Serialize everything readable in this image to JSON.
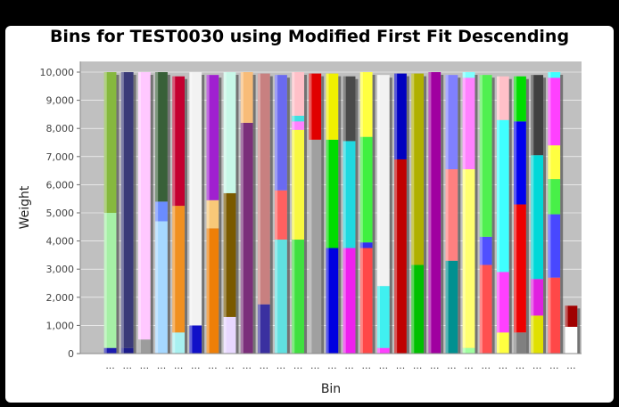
{
  "chart_data": {
    "type": "bar",
    "stacked": true,
    "title": "Bins for TEST0030 using Modified First Fit Descending",
    "xlabel": "Bin",
    "ylabel": "Weight",
    "ylim": [
      0,
      10000
    ],
    "yticks": [
      0,
      1000,
      2000,
      3000,
      4000,
      5000,
      6000,
      7000,
      8000,
      9000,
      10000
    ],
    "ytick_labels": [
      "0",
      "1,000",
      "2,000",
      "3,000",
      "4,000",
      "5,000",
      "6,000",
      "7,000",
      "8,000",
      "9,000",
      "10,000"
    ],
    "xtick_label": "...",
    "grid": true,
    "plot_background": "#c0c0c0",
    "bins": [
      [
        {
          "v": 200,
          "c": "#1c1cb0"
        },
        {
          "v": 4800,
          "c": "#a6f0a6"
        },
        {
          "v": 5000,
          "c": "#86b83e"
        }
      ],
      [
        {
          "v": 200,
          "c": "#1c1c8c"
        },
        {
          "v": 9800,
          "c": "#3a3a78"
        }
      ],
      [
        {
          "v": 500,
          "c": "#9c9c9c"
        },
        {
          "v": 9500,
          "c": "#ffc8ff"
        }
      ],
      [
        {
          "v": 4700,
          "c": "#a6d8ff"
        },
        {
          "v": 700,
          "c": "#6a8cff"
        },
        {
          "v": 4600,
          "c": "#386038"
        }
      ],
      [
        {
          "v": 750,
          "c": "#a8f0f0"
        },
        {
          "v": 4500,
          "c": "#f09020"
        },
        {
          "v": 4600,
          "c": "#c40030"
        }
      ],
      [
        {
          "v": 1000,
          "c": "#1010c8"
        },
        {
          "v": 9000,
          "c": "#f2f2f2"
        }
      ],
      [
        {
          "v": 4450,
          "c": "#ee7f08"
        },
        {
          "v": 1000,
          "c": "#f8c878"
        },
        {
          "v": 4450,
          "c": "#a020d0"
        }
      ],
      [
        {
          "v": 1300,
          "c": "#e8d8ff"
        },
        {
          "v": 4400,
          "c": "#7a5a00"
        },
        {
          "v": 4300,
          "c": "#c8f8e8"
        }
      ],
      [
        {
          "v": 8200,
          "c": "#7a2e7a"
        },
        {
          "v": 1800,
          "c": "#f8bc78"
        }
      ],
      [
        {
          "v": 1750,
          "c": "#3a30a0"
        },
        {
          "v": 8200,
          "c": "#c88080"
        }
      ],
      [
        {
          "v": 4050,
          "c": "#60e0e0"
        },
        {
          "v": 1750,
          "c": "#ff6060"
        },
        {
          "v": 4100,
          "c": "#6a6af0"
        }
      ],
      [
        {
          "v": 4050,
          "c": "#40e040"
        },
        {
          "v": 3900,
          "c": "#f8f840"
        },
        {
          "v": 300,
          "c": "#ff80ff"
        },
        {
          "v": 200,
          "c": "#40e0e0"
        },
        {
          "v": 1550,
          "c": "#ffc0c8"
        }
      ],
      [
        {
          "v": 7600,
          "c": "#a0a0a0"
        },
        {
          "v": 2350,
          "c": "#e00000"
        }
      ],
      [
        {
          "v": 3750,
          "c": "#0000e0"
        },
        {
          "v": 3850,
          "c": "#00dc00"
        },
        {
          "v": 2350,
          "c": "#f0f000"
        }
      ],
      [
        {
          "v": 3750,
          "c": "#ee20ee"
        },
        {
          "v": 3800,
          "c": "#20d8e0"
        },
        {
          "v": 2300,
          "c": "#4a4a4a"
        }
      ],
      [
        {
          "v": 3750,
          "c": "#ff4848"
        },
        {
          "v": 200,
          "c": "#3030f0"
        },
        {
          "v": 3750,
          "c": "#40f040"
        },
        {
          "v": 2300,
          "c": "#ffff40"
        }
      ],
      [
        {
          "v": 200,
          "c": "#ff40ff"
        },
        {
          "v": 2200,
          "c": "#40f0f0"
        },
        {
          "v": 7500,
          "c": "#f2f2f2"
        }
      ],
      [
        {
          "v": 6900,
          "c": "#c00000"
        },
        {
          "v": 3050,
          "c": "#0000c0"
        }
      ],
      [
        {
          "v": 3150,
          "c": "#00c000"
        },
        {
          "v": 6800,
          "c": "#b0b000"
        }
      ],
      [
        {
          "v": 10000,
          "c": "#a000a0"
        }
      ],
      [
        {
          "v": 3300,
          "c": "#009090"
        },
        {
          "v": 3250,
          "c": "#ff8080"
        },
        {
          "v": 3350,
          "c": "#8080ff"
        }
      ],
      [
        {
          "v": 200,
          "c": "#a0ffa0"
        },
        {
          "v": 6350,
          "c": "#ffff70"
        },
        {
          "v": 3250,
          "c": "#ff80ff"
        },
        {
          "v": 200,
          "c": "#80ffff"
        }
      ],
      [
        {
          "v": 3150,
          "c": "#ff5050"
        },
        {
          "v": 1000,
          "c": "#5050ff"
        },
        {
          "v": 5750,
          "c": "#50f050"
        }
      ],
      [
        {
          "v": 750,
          "c": "#ffff40"
        },
        {
          "v": 2150,
          "c": "#ff40ff"
        },
        {
          "v": 5400,
          "c": "#40ffff"
        },
        {
          "v": 1550,
          "c": "#ffc0c8"
        }
      ],
      [
        {
          "v": 750,
          "c": "#808080"
        },
        {
          "v": 4550,
          "c": "#ee0000"
        },
        {
          "v": 2950,
          "c": "#0000ee"
        },
        {
          "v": 1600,
          "c": "#00dd00"
        }
      ],
      [
        {
          "v": 1350,
          "c": "#e0e000"
        },
        {
          "v": 1300,
          "c": "#e020e0"
        },
        {
          "v": 4400,
          "c": "#00d8d8"
        },
        {
          "v": 2850,
          "c": "#404040"
        }
      ],
      [
        {
          "v": 2700,
          "c": "#ff4848"
        },
        {
          "v": 2250,
          "c": "#4848ff"
        },
        {
          "v": 1250,
          "c": "#48f048"
        },
        {
          "v": 1200,
          "c": "#ffff40"
        },
        {
          "v": 2400,
          "c": "#ff40ff"
        },
        {
          "v": 200,
          "c": "#40ffff"
        }
      ],
      [
        {
          "v": 950,
          "c": "#ffffff"
        },
        {
          "v": 750,
          "c": "#a00000"
        }
      ]
    ]
  }
}
